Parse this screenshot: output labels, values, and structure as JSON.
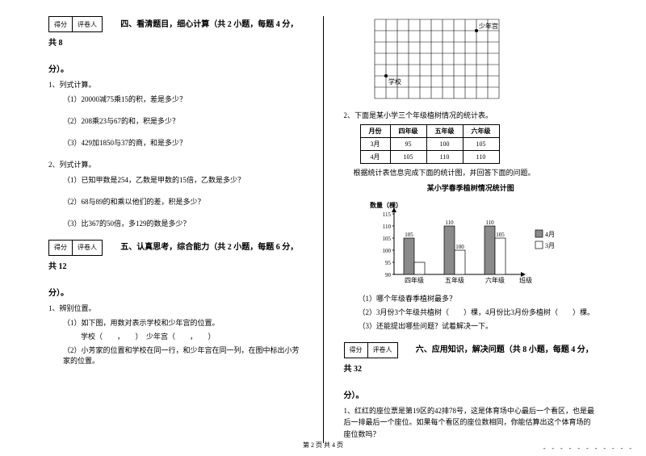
{
  "scorebox": {
    "score": "得分",
    "reviewer": "评卷人"
  },
  "sec4": {
    "title": "四、看清题目，细心计算（共 2 小题，每题 4 分，共 8",
    "pts": "分）。",
    "q1": "1、列式计算。",
    "q1a": "（1）20000减75乘15的积，差是多少？",
    "q1b": "（2）208乘23与67的和，积是多少？",
    "q1c": "（3）429加1850与37的商，和是多少？",
    "q2": "2、列式计算。",
    "q2a": "（1）已知甲数是254，乙数是甲数的15倍，乙数是多少？",
    "q2b": "（2）68与89的和乘以他们的差，积是多少？",
    "q2c": "（3）比367的50倍，多129的数是多少？"
  },
  "sec5": {
    "title": "五、认真思考，综合能力（共 2 小题，每题 6 分，共 12",
    "pts": "分）。",
    "q1": "1、辨别位置。",
    "q1a": "（1）如下图，用数对表示学校和少年宫的位置。",
    "q1a_line": "学校（　　，　　）　少年宫（　　，　　）",
    "q1b": "（2）小芳家的位置和学校在同一行，和少年宫在同一列，在图中标出小芳家的位置。"
  },
  "grid": {
    "cols": 11,
    "rows": 7,
    "cell": 14,
    "school_label": "学校",
    "school_x": 1,
    "school_y": 5,
    "palace_label": "少年宫",
    "palace_x": 9,
    "palace_y": 1
  },
  "table": {
    "caption": "2、下面是某小学三个年级植树情况的统计表。",
    "header": [
      "月份",
      "四年级",
      "五年级",
      "六年级"
    ],
    "rows": [
      [
        "3月",
        "95",
        "100",
        "105"
      ],
      [
        "4月",
        "105",
        "110",
        "110"
      ]
    ],
    "note": "根据统计表信息完成下面的统计图，并回答下面的问题。"
  },
  "barchart": {
    "title": "某小学春季植树情况统计图",
    "ylabel": "数量（棵）",
    "yticks": [
      90,
      95,
      100,
      105,
      110,
      115
    ],
    "categories": [
      "四年级",
      "五年级",
      "六年级"
    ],
    "xlabel_suffix": "班级",
    "series": [
      {
        "name": "4月",
        "color": "#8a8a8a",
        "values": [
          105,
          110,
          110
        ]
      },
      {
        "name": "3月",
        "color": "#ffffff",
        "values": [
          95,
          100,
          105
        ]
      }
    ],
    "value_labels": [
      "105",
      "100",
      "110",
      "105",
      "110"
    ],
    "legend": [
      {
        "label": "4月",
        "color": "#8a8a8a"
      },
      {
        "label": "3月",
        "color": "#ffffff"
      }
    ]
  },
  "sec5q": {
    "a": "（1）哪个年级春季植树最多？",
    "b": "（2）3月份3个年级共植树（　　）棵，4月份比3月份多植树（　　）棵。",
    "c": "（3）还能提出哪些问题？试着解决一下。"
  },
  "sec6": {
    "title": "六、应用知识，解决问题（共 8 小题，每题 4 分，共 32",
    "pts": "分）。",
    "q1": "1、红红的座位票是第19区的42排78号，这是体育场中心最后一个看区，也是最后一排最后一个座位。如果每个看区的座位数相同，你能估算出这个体育场的座位数吗？"
  },
  "footer": "第 2 页 共 4 页"
}
